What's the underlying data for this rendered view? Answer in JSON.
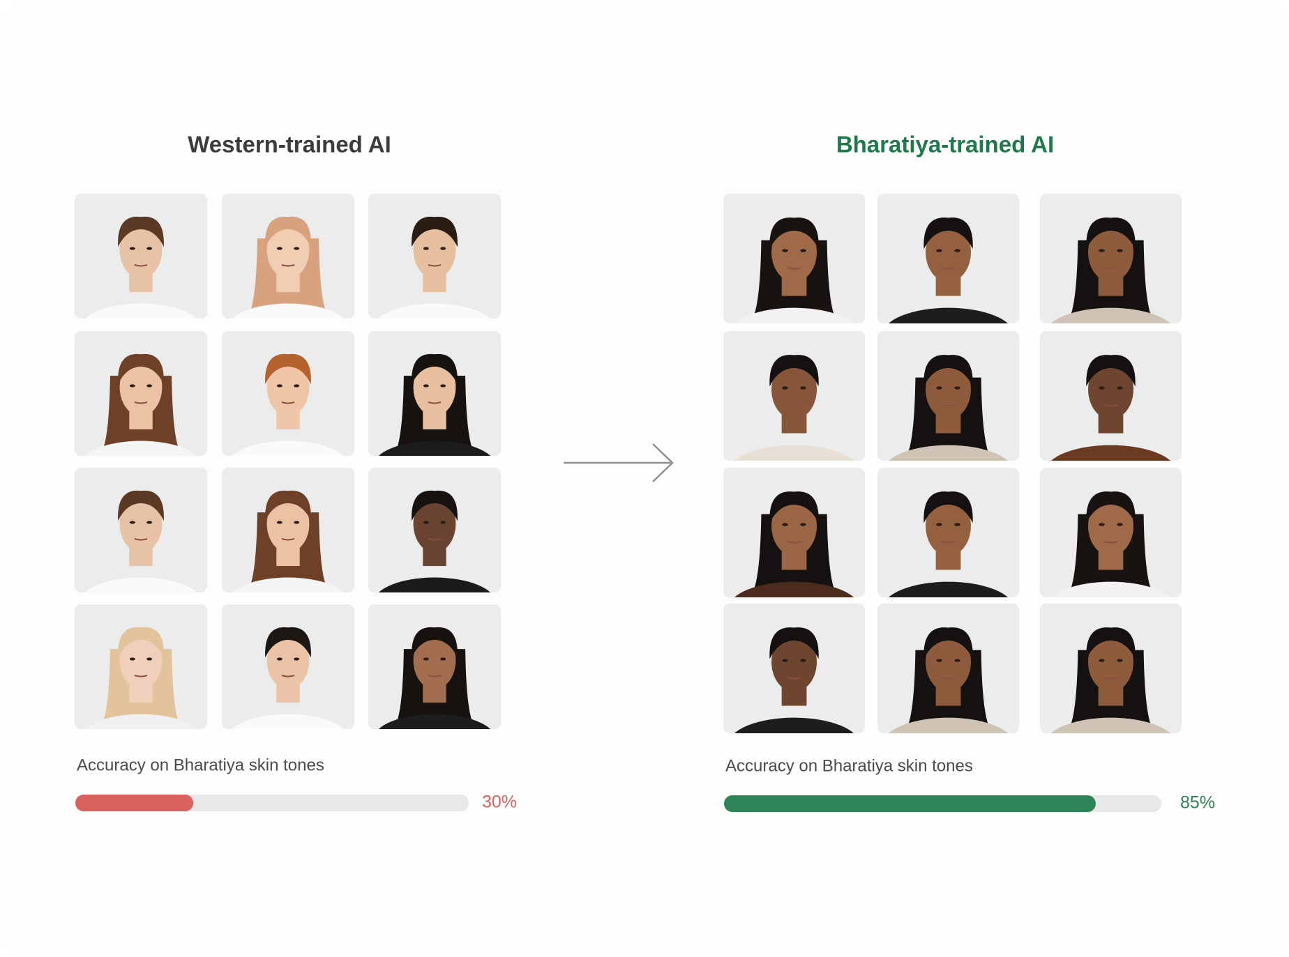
{
  "panels": [
    {
      "title": "Western-trained AI",
      "title_color": "#3b3b3b",
      "accuracy_label": "Accuracy on Bharatiya skin tones",
      "accuracy": {
        "value": 30,
        "label": "30%"
      },
      "xlim": [
        0,
        100
      ],
      "color": "#d9615e"
    },
    {
      "title": "Bharatiya-trained AI",
      "title_color": "#1f7a4b",
      "accuracy_label": "Accuracy on Bharatiya skin tones",
      "accuracy": {
        "value": 85,
        "label": "85%"
      },
      "xlim": [
        0,
        100
      ],
      "color": "#2e8456"
    }
  ]
}
